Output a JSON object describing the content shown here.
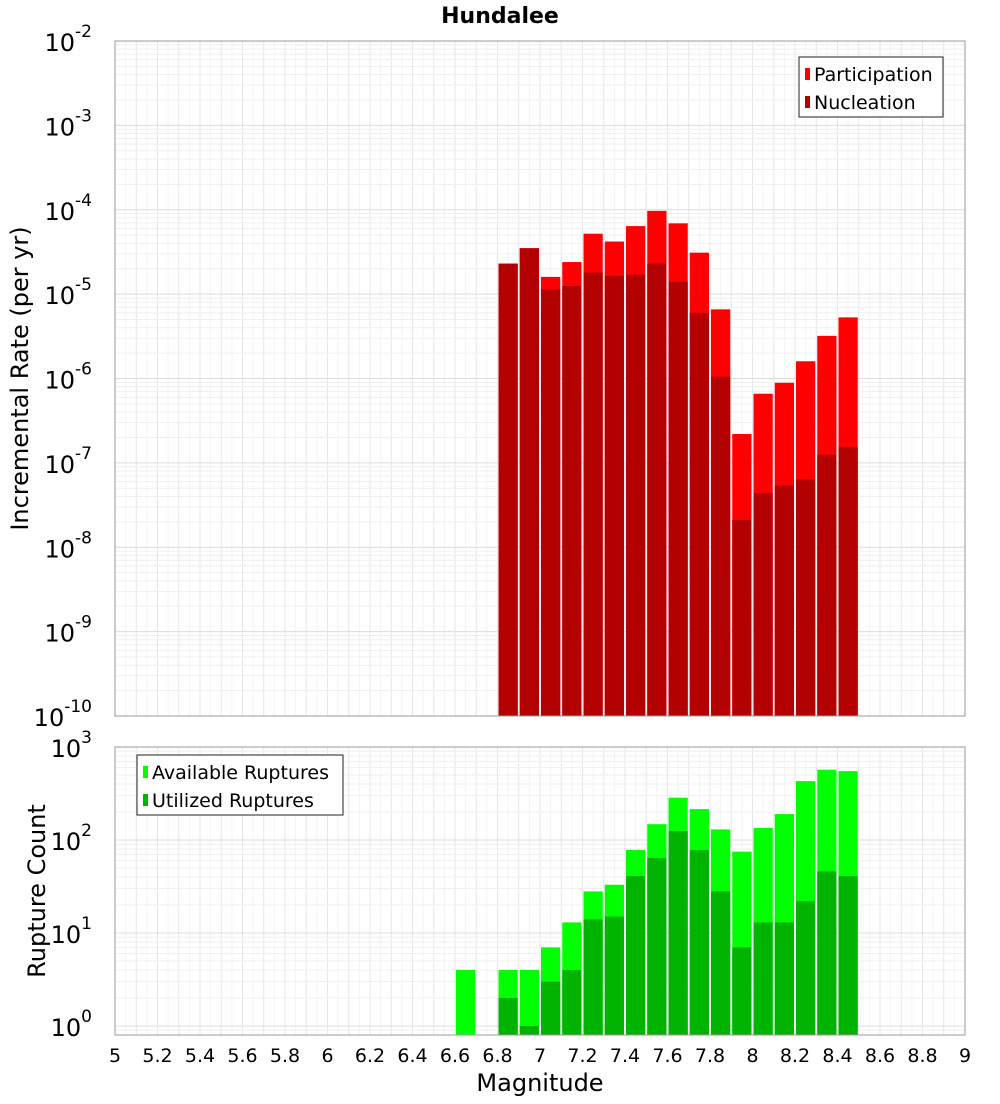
{
  "title": "Hundalee",
  "chart_data": [
    {
      "type": "bar",
      "title": "Hundalee",
      "ylabel": "Incremental Rate (per yr)",
      "yscale": "log",
      "ylim": [
        1e-10,
        0.01
      ],
      "ytick_exponents": [
        -10,
        -9,
        -8,
        -7,
        -6,
        -5,
        -4,
        -3,
        -2
      ],
      "grid": true,
      "legend": "top-right",
      "x": [
        6.85,
        6.95,
        7.05,
        7.15,
        7.25,
        7.35,
        7.45,
        7.55,
        7.65,
        7.75,
        7.85,
        7.95,
        8.05,
        8.15,
        8.25,
        8.35,
        8.45
      ],
      "series": [
        {
          "name": "Participation",
          "color": "#ff0000",
          "values": [
            2.3e-05,
            3.5e-05,
            1.6e-05,
            2.4e-05,
            5.2e-05,
            4.2e-05,
            6.4e-05,
            9.7e-05,
            6.9e-05,
            3.1e-05,
            6.6e-06,
            2.2e-07,
            6.6e-07,
            8.9e-07,
            1.6e-06,
            3.2e-06,
            5.3e-06
          ]
        },
        {
          "name": "Nucleation",
          "color": "#b30000",
          "values": [
            2.3e-05,
            3.5e-05,
            1.15e-05,
            1.25e-05,
            1.8e-05,
            1.65e-05,
            1.7e-05,
            2.3e-05,
            1.4e-05,
            6e-06,
            1.05e-06,
            2.1e-08,
            4.4e-08,
            5.4e-08,
            6.4e-08,
            1.25e-07,
            1.55e-07
          ]
        }
      ]
    },
    {
      "type": "bar",
      "xlabel": "Magnitude",
      "ylabel": "Rupture Count",
      "yscale": "log",
      "ylim": [
        0.8,
        1000
      ],
      "ytick_exponents": [
        0,
        1,
        2,
        3
      ],
      "xlim": [
        5,
        9
      ],
      "xticks": [
        "5",
        "5.2",
        "5.4",
        "5.6",
        "5.8",
        "6",
        "6.2",
        "6.4",
        "6.6",
        "6.8",
        "7",
        "7.2",
        "7.4",
        "7.6",
        "7.8",
        "8",
        "8.2",
        "8.4",
        "8.6",
        "8.8",
        "9"
      ],
      "grid": true,
      "legend": "top-left",
      "x": [
        6.65,
        6.85,
        6.95,
        7.05,
        7.15,
        7.25,
        7.35,
        7.45,
        7.55,
        7.65,
        7.75,
        7.85,
        7.95,
        8.05,
        8.15,
        8.25,
        8.35,
        8.45
      ],
      "series": [
        {
          "name": "Available Ruptures",
          "color": "#00ff00",
          "values": [
            4,
            4,
            4,
            7,
            13,
            28,
            33,
            78,
            148,
            285,
            215,
            130,
            75,
            135,
            190,
            430,
            570,
            550
          ]
        },
        {
          "name": "Utilized Ruptures",
          "color": "#00b300",
          "values": [
            0,
            2,
            1,
            3,
            4,
            14,
            15,
            41,
            64,
            125,
            78,
            28,
            7,
            13,
            13,
            22,
            46,
            41
          ]
        }
      ]
    }
  ]
}
